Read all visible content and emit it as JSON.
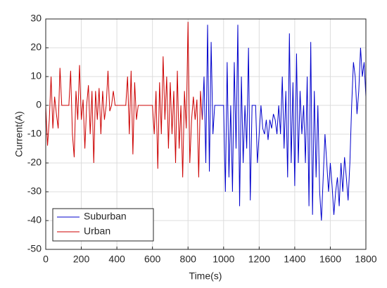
{
  "chart_data": {
    "type": "line",
    "xlabel": "Time(s)",
    "ylabel": "Current(A)",
    "xlim": [
      0,
      1800
    ],
    "xticks": [
      0,
      200,
      400,
      600,
      800,
      1000,
      1200,
      1400,
      1600,
      1800
    ],
    "ylim": [
      -50,
      30
    ],
    "yticks": [
      -50,
      -40,
      -30,
      -20,
      -10,
      0,
      10,
      20,
      30
    ],
    "grid": true,
    "legend": "lower left",
    "series": [
      {
        "name": "Suburban",
        "color": "#0000cc",
        "x": [
          880,
          890,
          900,
          910,
          920,
          930,
          940,
          950,
          960,
          970,
          980,
          990,
          1000,
          1010,
          1020,
          1030,
          1040,
          1050,
          1060,
          1070,
          1080,
          1090,
          1100,
          1110,
          1120,
          1130,
          1140,
          1150,
          1160,
          1170,
          1180,
          1190,
          1200,
          1210,
          1220,
          1230,
          1240,
          1250,
          1260,
          1270,
          1280,
          1290,
          1300,
          1310,
          1320,
          1330,
          1340,
          1350,
          1360,
          1370,
          1380,
          1390,
          1400,
          1410,
          1420,
          1430,
          1440,
          1450,
          1460,
          1470,
          1480,
          1490,
          1500,
          1510,
          1520,
          1530,
          1540,
          1550,
          1560,
          1570,
          1580,
          1590,
          1600,
          1610,
          1620,
          1630,
          1640,
          1650,
          1660,
          1670,
          1680,
          1690,
          1700,
          1710,
          1720,
          1730,
          1740,
          1750,
          1760,
          1770,
          1780,
          1790,
          1800
        ],
        "values": [
          -5,
          10,
          -20,
          28,
          -23,
          22,
          -10,
          0,
          0,
          0,
          0,
          0,
          0,
          -30,
          15,
          -25,
          0,
          -30,
          15,
          -15,
          28,
          -35,
          10,
          -20,
          0,
          -15,
          20,
          -33,
          0,
          0,
          0,
          -20,
          -10,
          0,
          -8,
          -10,
          -5,
          -12,
          -5,
          -8,
          -3,
          -5,
          -10,
          0,
          -10,
          10,
          -15,
          5,
          -25,
          25,
          -20,
          8,
          -28,
          18,
          -20,
          5,
          -10,
          0,
          -20,
          10,
          -35,
          22,
          -38,
          5,
          -25,
          0,
          -30,
          -40,
          -25,
          -10,
          -20,
          -30,
          -20,
          -28,
          -38,
          -30,
          -25,
          -35,
          -20,
          -30,
          -18,
          -25,
          -33,
          -20,
          0,
          15,
          10,
          -3,
          5,
          20,
          10,
          15,
          3
        ]
      },
      {
        "name": "Urban",
        "color": "#cc0000",
        "x": [
          0,
          10,
          20,
          30,
          40,
          50,
          60,
          70,
          80,
          90,
          100,
          110,
          120,
          130,
          140,
          150,
          160,
          170,
          180,
          190,
          200,
          210,
          220,
          230,
          240,
          250,
          260,
          270,
          280,
          290,
          300,
          310,
          320,
          330,
          340,
          350,
          360,
          370,
          380,
          390,
          400,
          410,
          420,
          430,
          440,
          450,
          460,
          470,
          480,
          490,
          500,
          510,
          520,
          530,
          540,
          550,
          560,
          570,
          580,
          590,
          600,
          610,
          620,
          630,
          640,
          650,
          660,
          670,
          680,
          690,
          700,
          710,
          720,
          730,
          740,
          750,
          760,
          770,
          780,
          790,
          800,
          810,
          820,
          830,
          840,
          850,
          860,
          870,
          880
        ],
        "values": [
          0,
          -14,
          -5,
          10,
          -8,
          3,
          -3,
          -8,
          13,
          0,
          0,
          0,
          0,
          0,
          12,
          -10,
          -18,
          5,
          -5,
          14,
          -5,
          2,
          -15,
          0,
          7,
          -10,
          5,
          -20,
          5,
          -5,
          6,
          -10,
          5,
          -5,
          0,
          12,
          -2,
          0,
          5,
          0,
          0,
          0,
          0,
          0,
          0,
          0,
          10,
          -10,
          12,
          -17,
          8,
          -5,
          0,
          0,
          0,
          0,
          0,
          0,
          0,
          0,
          0,
          -10,
          5,
          -22,
          8,
          -10,
          17,
          -5,
          10,
          -15,
          8,
          -10,
          5,
          -20,
          12,
          -15,
          0,
          -25,
          5,
          -8,
          29,
          -20,
          -5,
          3,
          -5,
          2,
          -25,
          5,
          -5
        ]
      }
    ]
  }
}
